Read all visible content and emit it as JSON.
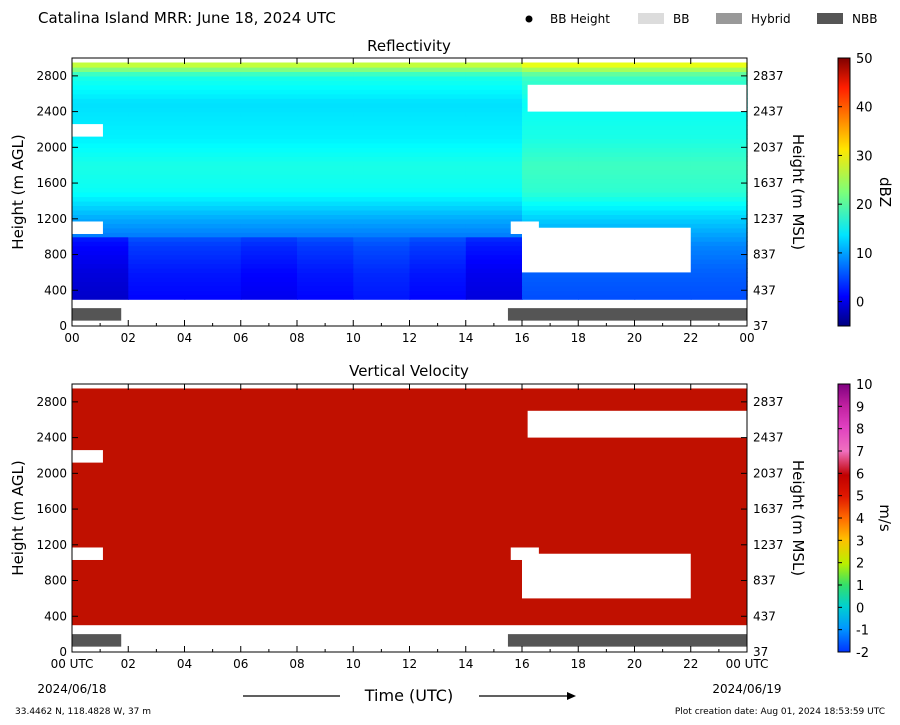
{
  "header": {
    "title": "Catalina Island MRR:  June 18, 2024 UTC",
    "legend": [
      {
        "label": "BB Height",
        "symbol": "dot",
        "color": "#000000"
      },
      {
        "label": "BB",
        "symbol": "bar",
        "color": "#dcdcdc"
      },
      {
        "label": "Hybrid",
        "symbol": "bar",
        "color": "#999999"
      },
      {
        "label": "NBB",
        "symbol": "bar",
        "color": "#555555"
      }
    ]
  },
  "footer": {
    "location": "33.4462 N, 118.4828 W, 37 m",
    "creation_date": "Plot creation date: Aug 01, 2024 18:53:59 UTC",
    "xlabel": "Time (UTC)",
    "start_date": "2024/06/18",
    "end_date": "2024/06/19"
  },
  "chart_data": [
    {
      "type": "heatmap",
      "title": "Reflectivity",
      "ylabel": "Height (m AGL)",
      "ylabel_right": "Height (m MSL)",
      "x_ticks": [
        "00",
        "02",
        "04",
        "06",
        "08",
        "10",
        "12",
        "14",
        "16",
        "18",
        "20",
        "22",
        "00"
      ],
      "xlim_hours": [
        0,
        24
      ],
      "ylim": [
        0,
        3000
      ],
      "y_ticks": [
        0,
        400,
        800,
        1200,
        1600,
        2000,
        2400,
        2800
      ],
      "y_ticks_right": [
        "37",
        "437",
        "837",
        "1237",
        "1637",
        "2037",
        "2437",
        "2837"
      ],
      "colorbar": {
        "label": "dBZ",
        "min": -5,
        "max": 50,
        "ticks": [
          "0",
          "10",
          "20",
          "30",
          "40",
          "50"
        ],
        "colormap": "jet"
      },
      "data_height_range": [
        300,
        2950
      ],
      "dbz_profile_by_height": [
        {
          "height": 300,
          "dbz": 4
        },
        {
          "height": 600,
          "dbz": 5
        },
        {
          "height": 900,
          "dbz": 7
        },
        {
          "height": 1200,
          "dbz": 11
        },
        {
          "height": 1500,
          "dbz": 16
        },
        {
          "height": 1800,
          "dbz": 17
        },
        {
          "height": 2100,
          "dbz": 15
        },
        {
          "height": 2500,
          "dbz": 14
        },
        {
          "height": 2800,
          "dbz": 17
        },
        {
          "height": 2950,
          "dbz": 28
        }
      ],
      "gaps": [
        {
          "t_start": 0.0,
          "t_end": 1.1,
          "h_start": 2120,
          "h_end": 2260
        },
        {
          "t_start": 0.0,
          "t_end": 1.1,
          "h_start": 1030,
          "h_end": 1170
        },
        {
          "t_start": 15.6,
          "t_end": 16.6,
          "h_start": 1030,
          "h_end": 1170
        },
        {
          "t_start": 16.2,
          "t_end": 24.0,
          "h_start": 2400,
          "h_end": 2700
        },
        {
          "t_start": 16.0,
          "t_end": 22.0,
          "h_start": 600,
          "h_end": 1100
        }
      ],
      "bright_band": [
        {
          "t_start": 0.0,
          "t_end": 1.75,
          "type": "NBB"
        },
        {
          "t_start": 15.5,
          "t_end": 24.0,
          "type": "NBB"
        }
      ]
    },
    {
      "type": "heatmap",
      "title": "Vertical Velocity",
      "ylabel": "Height (m AGL)",
      "ylabel_right": "Height (m MSL)",
      "x_ticks": [
        "00 UTC",
        "02",
        "04",
        "06",
        "08",
        "10",
        "12",
        "14",
        "16",
        "18",
        "20",
        "22",
        "00 UTC"
      ],
      "xlim_hours": [
        0,
        24
      ],
      "ylim": [
        0,
        3000
      ],
      "y_ticks": [
        0,
        400,
        800,
        1200,
        1600,
        2000,
        2400,
        2800
      ],
      "y_ticks_right": [
        "37",
        "437",
        "837",
        "1237",
        "1637",
        "2037",
        "2437",
        "2837"
      ],
      "colorbar": {
        "label": "m/s",
        "min": -2,
        "max": 10,
        "ticks": [
          "-2",
          "-1",
          "0",
          "1",
          "2",
          "3",
          "4",
          "5",
          "6",
          "7",
          "8",
          "9",
          "10"
        ]
      },
      "data_height_range": [
        300,
        2950
      ],
      "value_everywhere": 6,
      "fill_color": "#c01000",
      "gaps": [
        {
          "t_start": 0.0,
          "t_end": 1.1,
          "h_start": 2120,
          "h_end": 2260
        },
        {
          "t_start": 0.0,
          "t_end": 1.1,
          "h_start": 1030,
          "h_end": 1170
        },
        {
          "t_start": 15.6,
          "t_end": 16.6,
          "h_start": 1030,
          "h_end": 1170
        },
        {
          "t_start": 16.2,
          "t_end": 24.0,
          "h_start": 2400,
          "h_end": 2700
        },
        {
          "t_start": 16.0,
          "t_end": 22.0,
          "h_start": 600,
          "h_end": 1100
        }
      ],
      "bright_band": [
        {
          "t_start": 0.0,
          "t_end": 1.75,
          "type": "NBB"
        },
        {
          "t_start": 15.5,
          "t_end": 24.0,
          "type": "NBB"
        }
      ]
    }
  ]
}
